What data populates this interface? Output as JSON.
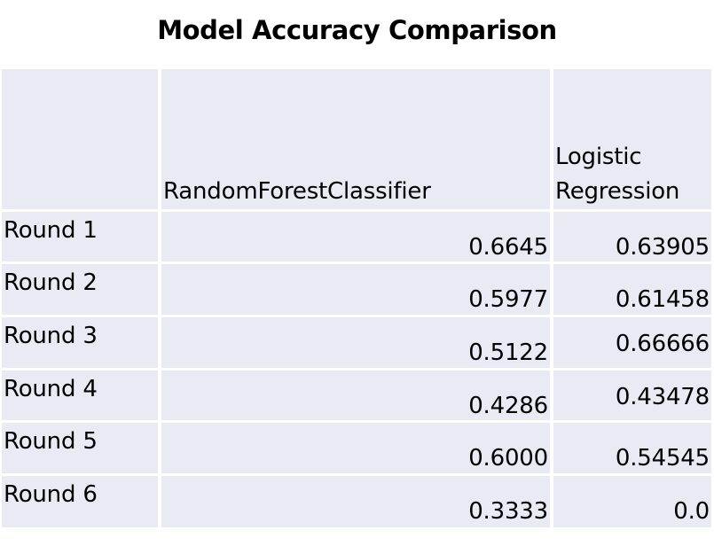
{
  "chart_data": {
    "type": "table",
    "title": "Model Accuracy Comparison",
    "columns": [
      "RandomForestClassifier",
      "Logistic Regression"
    ],
    "rows": [
      {
        "label": "Round 1",
        "values": [
          "0.6645",
          "0.63905"
        ]
      },
      {
        "label": "Round 2",
        "values": [
          "0.5977",
          "0.61458"
        ]
      },
      {
        "label": "Round 3",
        "values": [
          "0.5122",
          "0.66666"
        ]
      },
      {
        "label": "Round 4",
        "values": [
          "0.4286",
          "0.43478"
        ]
      },
      {
        "label": "Round 5",
        "values": [
          "0.6000",
          "0.54545"
        ]
      },
      {
        "label": "Round 6",
        "values": [
          "0.3333",
          "0.0"
        ]
      }
    ]
  },
  "colors": {
    "cell_background": "#e8eaf4",
    "grid_lines": "#ffffff",
    "text": "#000000"
  }
}
